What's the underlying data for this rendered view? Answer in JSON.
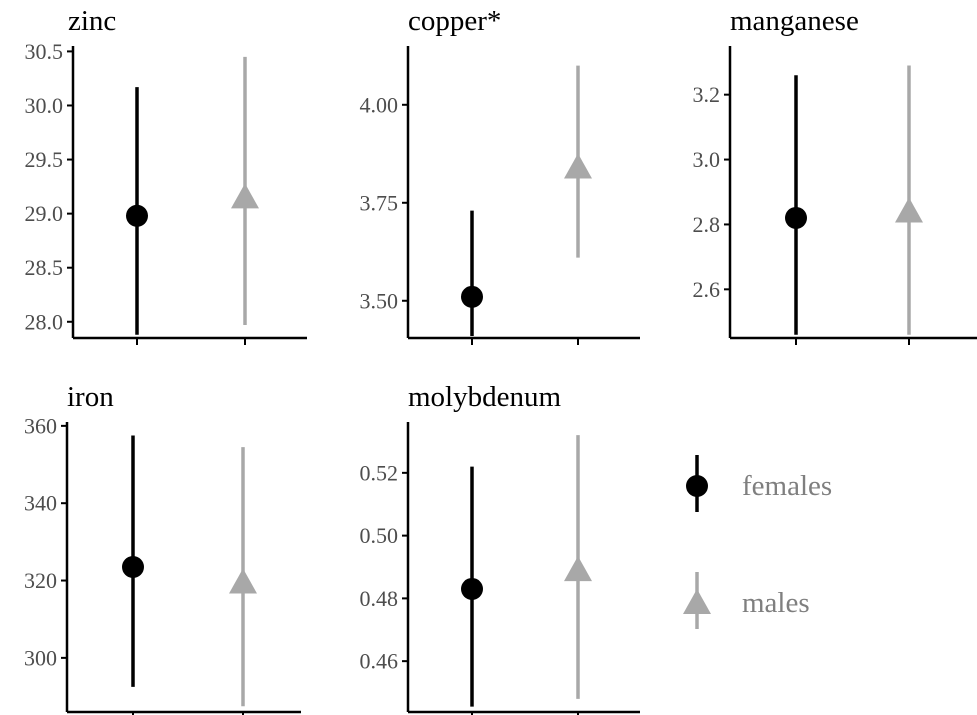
{
  "colors": {
    "females": "#000000",
    "males": "#a8a8a8",
    "axis": "#000000",
    "tick_text": "#4d4d4d",
    "title_text": "#000000",
    "legend_text": "#7f7f7f"
  },
  "legend": {
    "placement": "right",
    "entries": [
      {
        "label": "females",
        "shape": "circle",
        "color_key": "females"
      },
      {
        "label": "males",
        "shape": "triangle",
        "color_key": "males"
      }
    ]
  },
  "chart_data": [
    {
      "type": "scatter",
      "title": "zinc",
      "categories": [
        "females",
        "males"
      ],
      "ylim": [
        27.85,
        30.55
      ],
      "yticks": [
        28.0,
        28.5,
        29.0,
        29.5,
        30.0,
        30.5
      ],
      "ytick_labels": [
        "28.0",
        "28.5",
        "29.0",
        "29.5",
        "30.0",
        "30.5"
      ],
      "series": [
        {
          "name": "females",
          "y": 28.98,
          "lower": 27.88,
          "upper": 30.17
        },
        {
          "name": "males",
          "y": 29.15,
          "lower": 27.97,
          "upper": 30.45
        }
      ]
    },
    {
      "type": "scatter",
      "title": "copper*",
      "categories": [
        "females",
        "males"
      ],
      "ylim": [
        3.405,
        4.15
      ],
      "yticks": [
        3.5,
        3.75,
        4.0
      ],
      "ytick_labels": [
        "3.50",
        "3.75",
        "4.00"
      ],
      "series": [
        {
          "name": "females",
          "y": 3.51,
          "lower": 3.41,
          "upper": 3.73
        },
        {
          "name": "males",
          "y": 3.84,
          "lower": 3.61,
          "upper": 4.1
        }
      ]
    },
    {
      "type": "scatter",
      "title": "manganese",
      "categories": [
        "females",
        "males"
      ],
      "ylim": [
        2.45,
        3.35
      ],
      "yticks": [
        2.6,
        2.8,
        3.0,
        3.2
      ],
      "ytick_labels": [
        "2.6",
        "2.8",
        "3.0",
        "3.2"
      ],
      "series": [
        {
          "name": "females",
          "y": 2.82,
          "lower": 2.46,
          "upper": 3.26
        },
        {
          "name": "males",
          "y": 2.84,
          "lower": 2.46,
          "upper": 3.29
        }
      ]
    },
    {
      "type": "scatter",
      "title": "iron",
      "categories": [
        "females",
        "males"
      ],
      "ylim": [
        286,
        361
      ],
      "yticks": [
        300,
        320,
        340,
        360
      ],
      "ytick_labels": [
        "300",
        "320",
        "340",
        "360"
      ],
      "series": [
        {
          "name": "females",
          "y": 323.5,
          "lower": 292.5,
          "upper": 357.5
        },
        {
          "name": "males",
          "y": 319.5,
          "lower": 287.5,
          "upper": 354.5
        }
      ]
    },
    {
      "type": "scatter",
      "title": "molybdenum",
      "categories": [
        "females",
        "males"
      ],
      "ylim": [
        0.4438,
        0.5362
      ],
      "yticks": [
        0.46,
        0.48,
        0.5,
        0.52
      ],
      "ytick_labels": [
        "0.46",
        "0.48",
        "0.50",
        "0.52"
      ],
      "series": [
        {
          "name": "females",
          "y": 0.483,
          "lower": 0.4455,
          "upper": 0.522
        },
        {
          "name": "males",
          "y": 0.489,
          "lower": 0.448,
          "upper": 0.532
        }
      ]
    }
  ]
}
